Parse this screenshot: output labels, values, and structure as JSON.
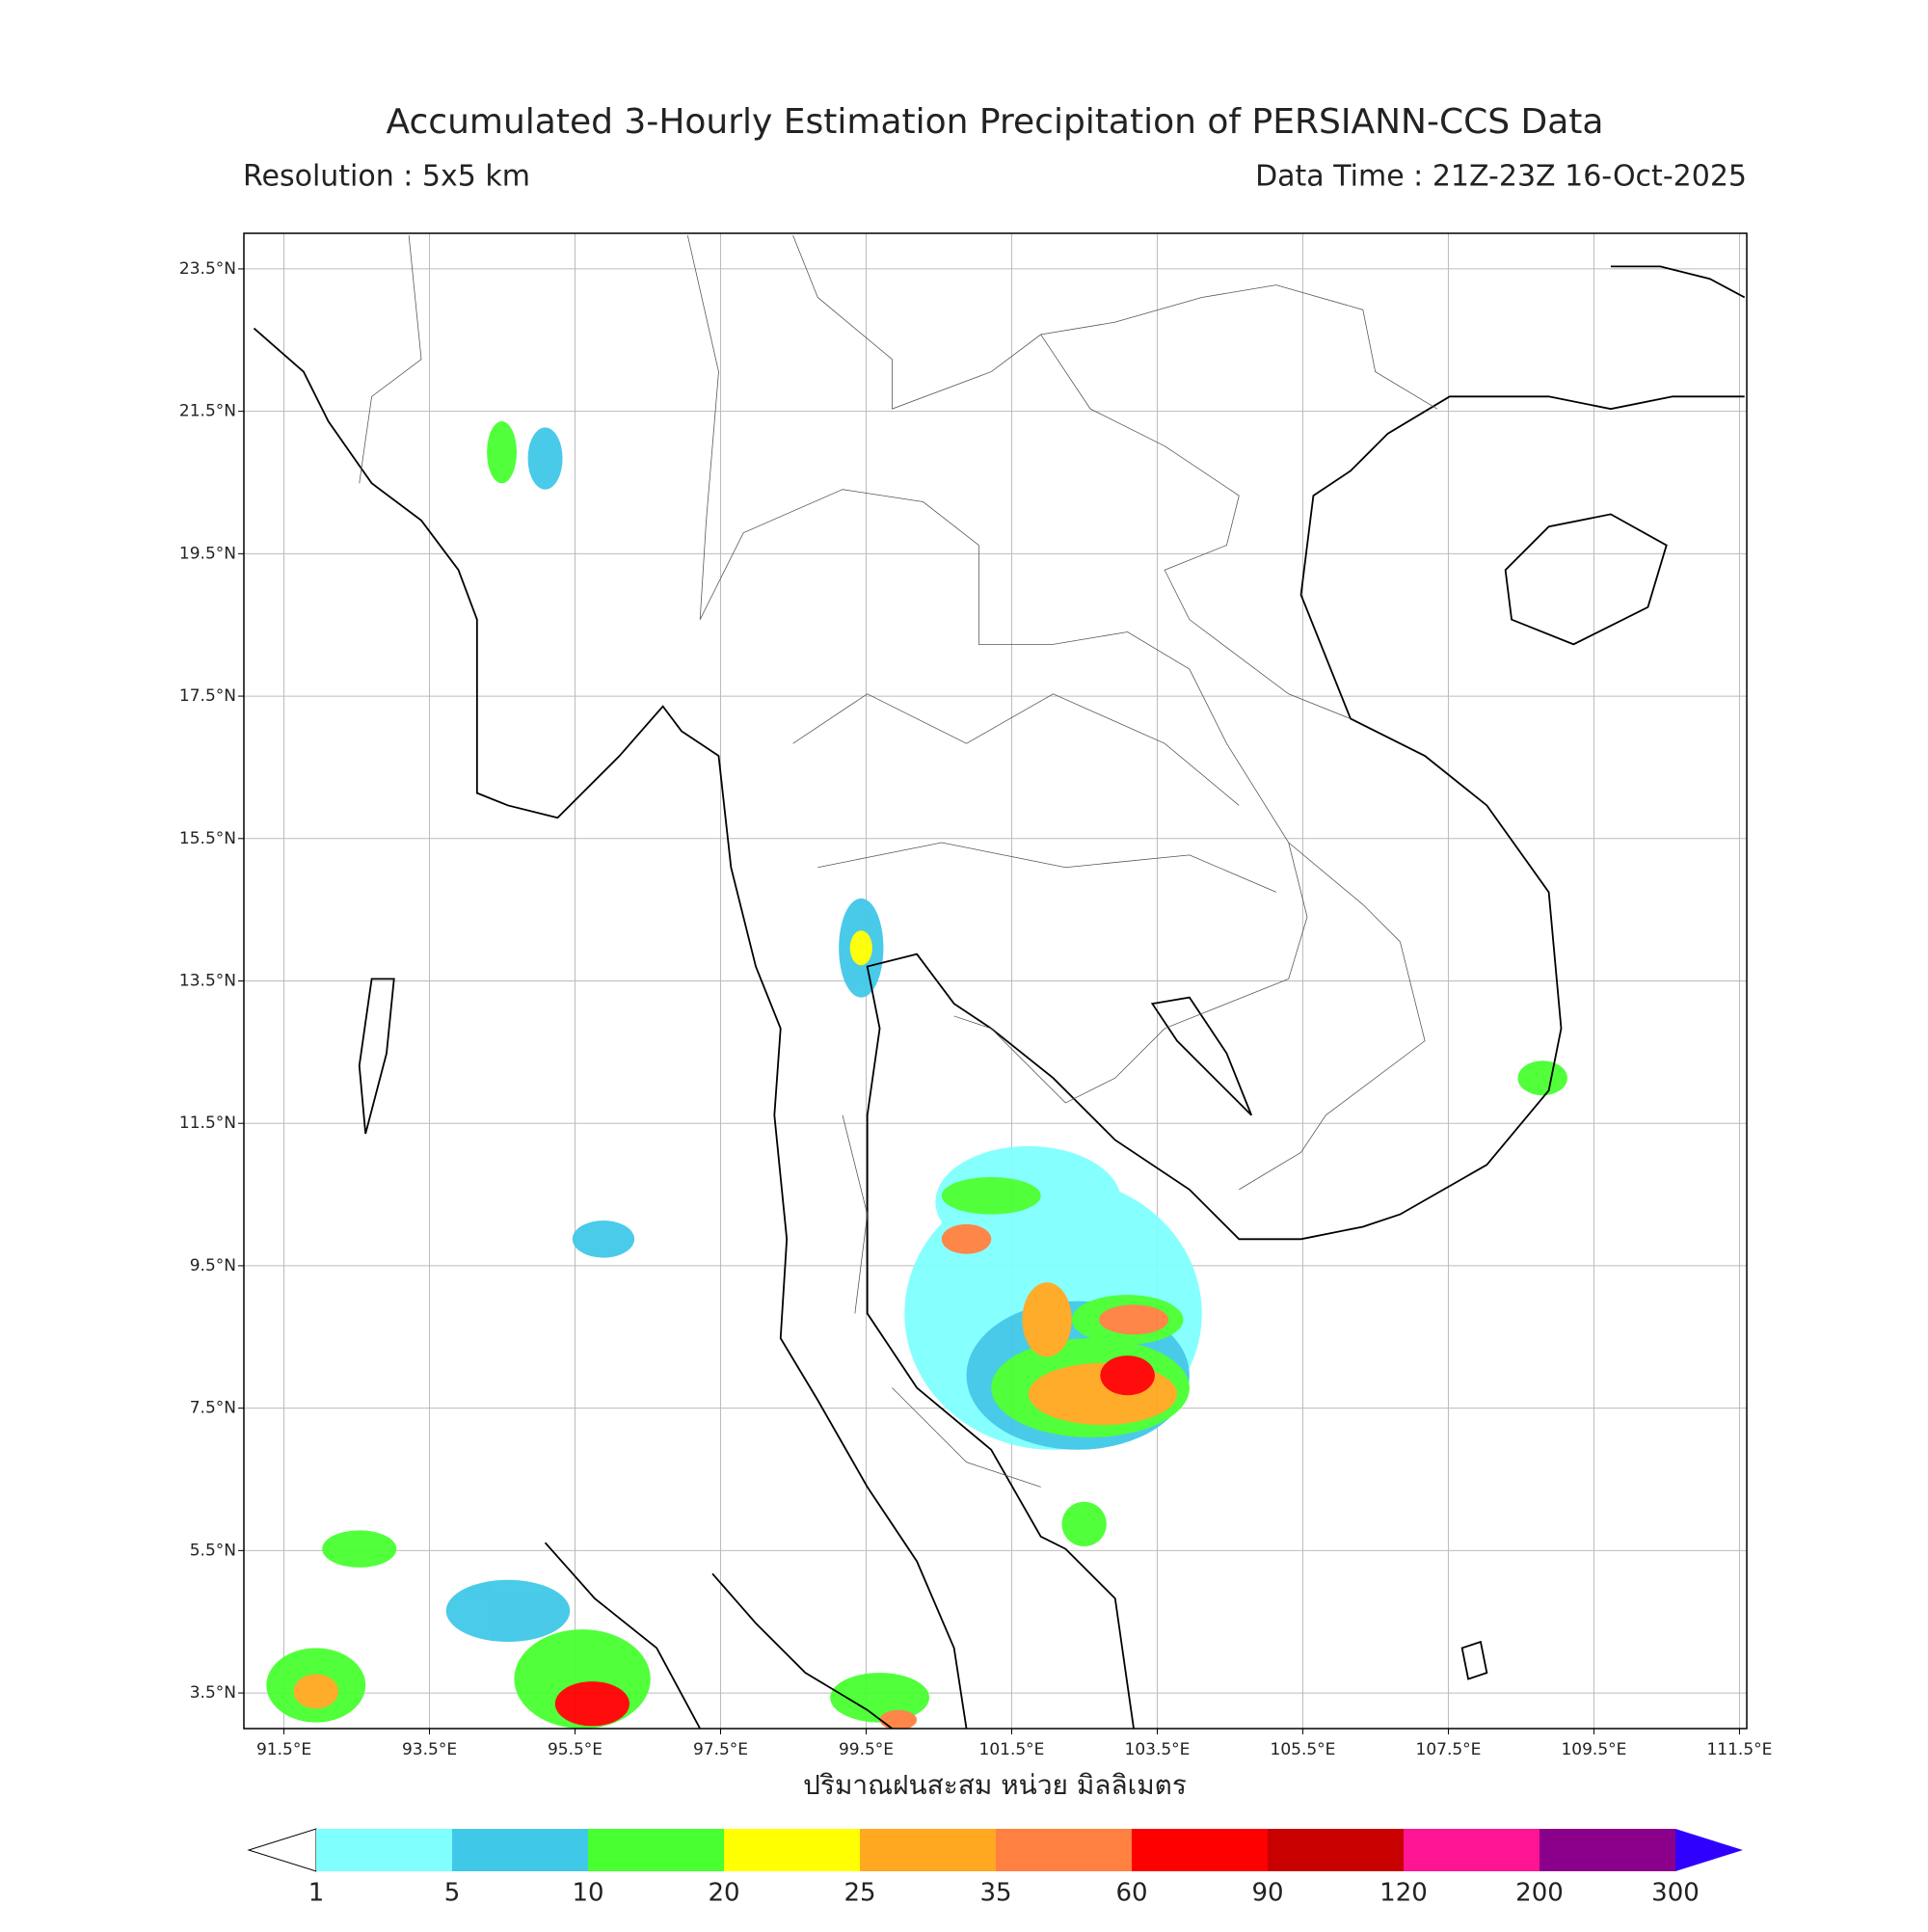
{
  "title": "Accumulated 3-Hourly Estimation Precipitation of PERSIANN-CCS Data",
  "subtitle_left": "Resolution : 5x5 km",
  "subtitle_right": "Data Time : 21Z-23Z 16-Oct-2025",
  "map": {
    "xlim": [
      90.95,
      111.6
    ],
    "ylim": [
      3.0,
      24.0
    ],
    "grid": true,
    "xticks": [
      {
        "value": 91.5,
        "label": "91.5°E"
      },
      {
        "value": 93.5,
        "label": "93.5°E"
      },
      {
        "value": 95.5,
        "label": "95.5°E"
      },
      {
        "value": 97.5,
        "label": "97.5°E"
      },
      {
        "value": 99.5,
        "label": "99.5°E"
      },
      {
        "value": 101.5,
        "label": "101.5°E"
      },
      {
        "value": 103.5,
        "label": "103.5°E"
      },
      {
        "value": 105.5,
        "label": "105.5°E"
      },
      {
        "value": 107.5,
        "label": "107.5°E"
      },
      {
        "value": 109.5,
        "label": "109.5°E"
      },
      {
        "value": 111.5,
        "label": "111.5°E"
      }
    ],
    "yticks": [
      {
        "value": 23.5,
        "label": "23.5°N"
      },
      {
        "value": 21.5,
        "label": "21.5°N"
      },
      {
        "value": 19.5,
        "label": "19.5°N"
      },
      {
        "value": 17.5,
        "label": "17.5°N"
      },
      {
        "value": 15.5,
        "label": "15.5°N"
      },
      {
        "value": 13.5,
        "label": "13.5°N"
      },
      {
        "value": 11.5,
        "label": "11.5°N"
      },
      {
        "value": 9.5,
        "label": "9.5°N"
      },
      {
        "value": 7.5,
        "label": "7.5°N"
      },
      {
        "value": 5.5,
        "label": "5.5°N"
      },
      {
        "value": 3.5,
        "label": "3.5°N"
      }
    ]
  },
  "colorbar": {
    "label": "ปริมาณฝนสะสม หน่วย มิลลิเมตร",
    "levels": [
      1,
      5,
      10,
      20,
      25,
      35,
      60,
      90,
      120,
      200,
      300
    ],
    "colors": [
      "#ffffff",
      "#80ffff",
      "#40c8e8",
      "#48ff30",
      "#ffff00",
      "#ffa820",
      "#ff8040",
      "#ff0000",
      "#c80000",
      "#ff1493",
      "#8b008b",
      "#3000ff"
    ]
  }
}
